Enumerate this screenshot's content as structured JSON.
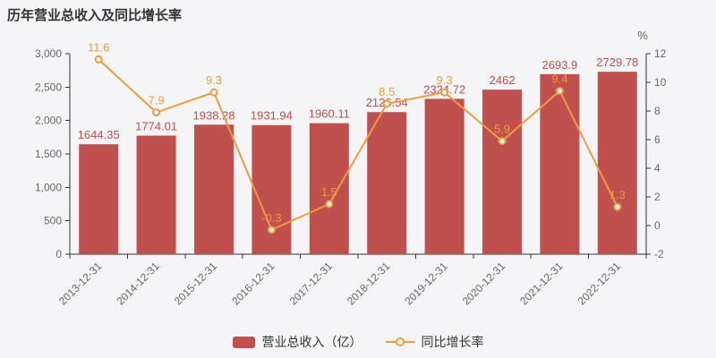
{
  "title": "历年营业总收入及同比增长率",
  "legend": {
    "items": [
      {
        "label": "营业总收入（亿）",
        "series": "bar"
      },
      {
        "label": "同比增长率",
        "series": "line"
      }
    ]
  },
  "colors": {
    "background": "#f5f5f7",
    "bar": "#c0504e",
    "bar_label": "#c0504e",
    "line": "#ef9b40",
    "line_label": "#ef9b40",
    "marker_fill": "#ffffff",
    "axis_line": "#333333",
    "tick_text": "#666666",
    "title_text": "#333333",
    "legend_text": "#333333"
  },
  "chart_data": {
    "type": "combo",
    "title": "历年营业总收入及同比增长率",
    "categories": [
      "2013-12-31",
      "2014-12-31",
      "2015-12-31",
      "2016-12-31",
      "2017-12-31",
      "2018-12-31",
      "2019-12-31",
      "2020-12-31",
      "2021-12-31",
      "2022-12-31"
    ],
    "series": [
      {
        "name": "营业总收入（亿）",
        "type": "bar",
        "y_axis": "left",
        "values": [
          1644.35,
          1774.01,
          1938.28,
          1931.94,
          1960.11,
          2126.54,
          2324.72,
          2462,
          2693.9,
          2729.78
        ]
      },
      {
        "name": "同比增长率",
        "type": "line",
        "y_axis": "right",
        "values": [
          11.6,
          7.9,
          9.3,
          -0.3,
          1.5,
          8.5,
          9.3,
          5.9,
          9.4,
          1.3
        ]
      }
    ],
    "left_axis": {
      "min": 0,
      "max": 3000,
      "tick_step": 500,
      "tick_labels": [
        "0",
        "500",
        "1,000",
        "1,500",
        "2,000",
        "2,500",
        "3,000"
      ]
    },
    "right_axis": {
      "min": -2,
      "max": 12,
      "tick_step": 2,
      "tick_labels": [
        "-2",
        "0",
        "2",
        "4",
        "6",
        "8",
        "10",
        "12"
      ],
      "name": "%"
    },
    "grid": false,
    "data_labels": true,
    "legend_position": "bottom"
  }
}
